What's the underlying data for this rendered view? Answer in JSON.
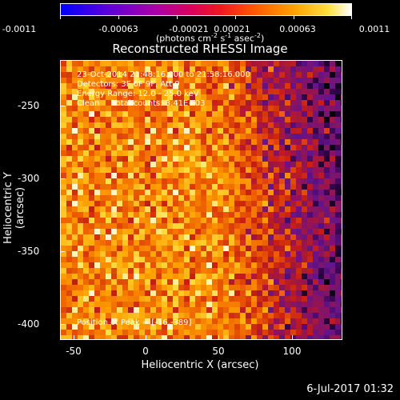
{
  "colorbar": {
    "ticks": [
      "-0.0011",
      "-0.00063",
      "-0.00021",
      "0.00021",
      "0.00063",
      "0.0011"
    ],
    "unit_main": "(photons cm",
    "unit_exp1": "-2",
    "unit_mid": " s",
    "unit_exp2": "-1",
    "unit_mid2": " asec",
    "unit_exp3": "-2",
    "unit_end": ")"
  },
  "title": "Reconstructed RHESSI Image",
  "info": {
    "line1": "23-Oct-2014 21:48:16.000 to 21:58:16.000",
    "line2": "Detectors: 3F 6F 9F, Att 0",
    "line3": "Energy Range: 12.0 - 25.0 keV",
    "line4": "Clean     Total counts: 3.41E+03",
    "peak": "Position of Peak = [-16,-389]"
  },
  "axes": {
    "xlabel": "Heliocentric X (arcsec)",
    "ylabel": "Heliocentric Y (arcsec)",
    "xticks": [
      "-50",
      "0",
      "50",
      "100"
    ],
    "yticks": [
      "-250",
      "-300",
      "-350",
      "-400"
    ]
  },
  "timestamp": "6-Jul-2017 01:32"
}
